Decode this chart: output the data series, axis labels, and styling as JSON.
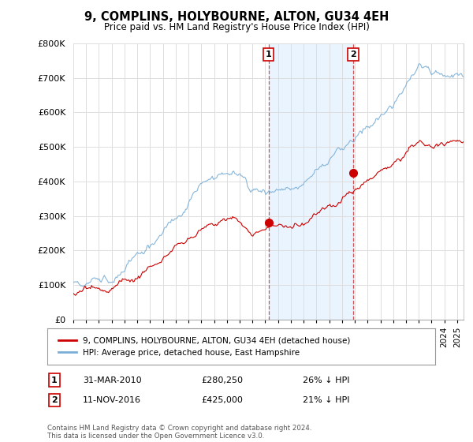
{
  "title": "9, COMPLINS, HOLYBOURNE, ALTON, GU34 4EH",
  "subtitle": "Price paid vs. HM Land Registry's House Price Index (HPI)",
  "ylim": [
    0,
    800000
  ],
  "yticks": [
    0,
    100000,
    200000,
    300000,
    400000,
    500000,
    600000,
    700000,
    800000
  ],
  "ytick_labels": [
    "£0",
    "£100K",
    "£200K",
    "£300K",
    "£400K",
    "£500K",
    "£600K",
    "£700K",
    "£800K"
  ],
  "sale1_date": 2010.25,
  "sale1_price": 280250,
  "sale1_label": "1",
  "sale2_date": 2016.87,
  "sale2_price": 425000,
  "sale2_label": "2",
  "line1_color": "#cc0000",
  "line2_color": "#7aaed6",
  "legend1": "9, COMPLINS, HOLYBOURNE, ALTON, GU34 4EH (detached house)",
  "legend2": "HPI: Average price, detached house, East Hampshire",
  "annotation1_date": "31-MAR-2010",
  "annotation1_price": "£280,250",
  "annotation1_hpi": "26% ↓ HPI",
  "annotation2_date": "11-NOV-2016",
  "annotation2_price": "£425,000",
  "annotation2_hpi": "21% ↓ HPI",
  "footnote": "Contains HM Land Registry data © Crown copyright and database right 2024.\nThis data is licensed under the Open Government Licence v3.0.",
  "bg_color": "#ffffff",
  "grid_color": "#dddddd",
  "shade_color": "#ddeeff",
  "xlim_start": 1995,
  "xlim_end": 2025.5
}
